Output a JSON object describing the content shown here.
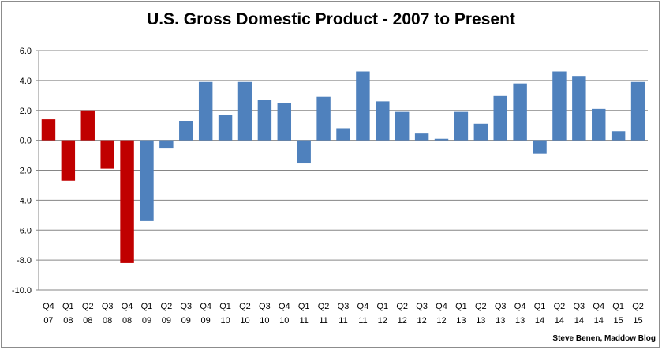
{
  "chart_data": {
    "type": "bar",
    "title": "U.S. Gross Domestic Product - 2007 to Present",
    "xlabel": "",
    "ylabel": "",
    "ylim": [
      -10.0,
      6.0
    ],
    "yticks": [
      "6.0",
      "4.0",
      "2.0",
      "0.0",
      "-2.0",
      "-4.0",
      "-6.0",
      "-8.0",
      "-10.0"
    ],
    "grid": "horizontal",
    "categories": [
      [
        "Q4",
        "07"
      ],
      [
        "Q1",
        "08"
      ],
      [
        "Q2",
        "08"
      ],
      [
        "Q3",
        "08"
      ],
      [
        "Q4",
        "08"
      ],
      [
        "Q1",
        "09"
      ],
      [
        "Q2",
        "09"
      ],
      [
        "Q3",
        "09"
      ],
      [
        "Q4",
        "09"
      ],
      [
        "Q1",
        "10"
      ],
      [
        "Q2",
        "10"
      ],
      [
        "Q3",
        "10"
      ],
      [
        "Q4",
        "10"
      ],
      [
        "Q1",
        "11"
      ],
      [
        "Q2",
        "11"
      ],
      [
        "Q3",
        "11"
      ],
      [
        "Q4",
        "11"
      ],
      [
        "Q1",
        "12"
      ],
      [
        "Q2",
        "12"
      ],
      [
        "Q3",
        "12"
      ],
      [
        "Q4",
        "12"
      ],
      [
        "Q1",
        "13"
      ],
      [
        "Q2",
        "13"
      ],
      [
        "Q3",
        "13"
      ],
      [
        "Q4",
        "13"
      ],
      [
        "Q1",
        "14"
      ],
      [
        "Q2",
        "14"
      ],
      [
        "Q3",
        "14"
      ],
      [
        "Q4",
        "14"
      ],
      [
        "Q1",
        "15"
      ],
      [
        "Q2",
        "15"
      ]
    ],
    "values": [
      1.4,
      -2.7,
      2.0,
      -1.9,
      -8.2,
      -5.4,
      -0.5,
      1.3,
      3.9,
      1.7,
      3.9,
      2.7,
      2.5,
      -1.5,
      2.9,
      0.8,
      4.6,
      2.6,
      1.9,
      0.5,
      0.1,
      1.9,
      1.1,
      3.0,
      3.8,
      -0.9,
      4.6,
      4.3,
      2.1,
      0.6,
      3.9
    ],
    "colors": {
      "highlight": "#c00000",
      "default": "#4f81bd"
    },
    "highlight_indices": [
      0,
      1,
      2,
      3,
      4
    ]
  },
  "credit": "Steve Benen, Maddow Blog"
}
